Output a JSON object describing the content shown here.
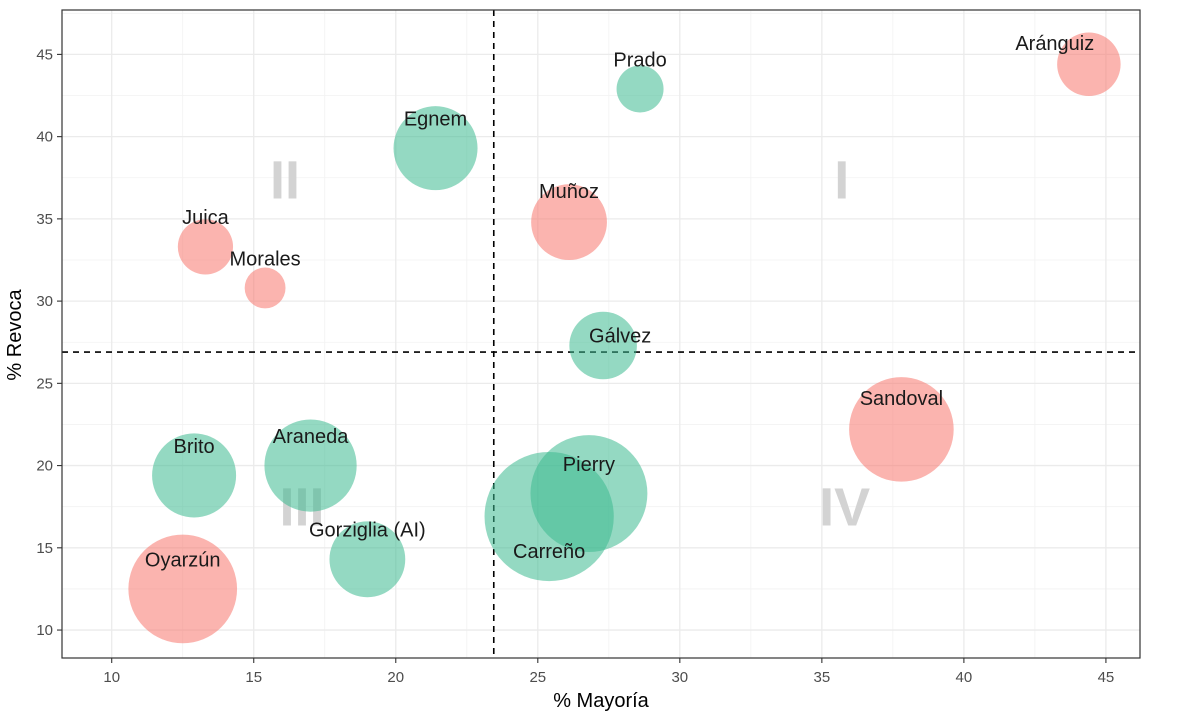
{
  "chart_data": {
    "type": "scatter",
    "title": "",
    "xlabel": "% Mayoría",
    "ylabel": "% Revoca",
    "xlim": [
      8.25,
      46.2
    ],
    "ylim": [
      8.3,
      47.7
    ],
    "xticks": [
      10,
      15,
      20,
      25,
      30,
      35,
      40,
      45
    ],
    "yticks": [
      10,
      15,
      20,
      25,
      30,
      35,
      40,
      45
    ],
    "grid": true,
    "colors": {
      "red": "#F8766D",
      "green": "#3CB990"
    },
    "reference_lines": {
      "x": 23.45,
      "y": 26.9
    },
    "quadrant_labels": [
      {
        "text": "I",
        "x": 35.7,
        "y": 37.4
      },
      {
        "text": "II",
        "x": 16.1,
        "y": 37.4
      },
      {
        "text": "III",
        "x": 16.7,
        "y": 17.5
      },
      {
        "text": "IV",
        "x": 35.8,
        "y": 17.5
      }
    ],
    "points": [
      {
        "name": "Aránguiz",
        "x": 44.4,
        "y": 44.4,
        "size": 2.6,
        "group": "red",
        "label_dx": -1.2,
        "label_dy": 1.3
      },
      {
        "name": "Prado",
        "x": 28.6,
        "y": 42.9,
        "size": 1.8,
        "group": "green",
        "label_dx": 0,
        "label_dy": 1.8
      },
      {
        "name": "Egnem",
        "x": 21.4,
        "y": 39.3,
        "size": 3.6,
        "group": "green",
        "label_dx": 0,
        "label_dy": 1.8
      },
      {
        "name": "Muñoz",
        "x": 26.1,
        "y": 34.8,
        "size": 3.2,
        "group": "red",
        "label_dx": 0,
        "label_dy": 1.9
      },
      {
        "name": "Juica",
        "x": 13.3,
        "y": 33.3,
        "size": 2.2,
        "group": "red",
        "label_dx": 0,
        "label_dy": 1.8
      },
      {
        "name": "Morales",
        "x": 15.4,
        "y": 30.8,
        "size": 1.5,
        "group": "red",
        "label_dx": 0,
        "label_dy": 1.8
      },
      {
        "name": "Gálvez",
        "x": 27.3,
        "y": 27.3,
        "size": 2.8,
        "group": "green",
        "label_dx": 0.6,
        "label_dy": 0.6
      },
      {
        "name": "Sandoval",
        "x": 37.8,
        "y": 22.2,
        "size": 4.6,
        "group": "red",
        "label_dx": 0,
        "label_dy": 1.9
      },
      {
        "name": "Brito",
        "x": 12.9,
        "y": 19.4,
        "size": 3.6,
        "group": "green",
        "label_dx": 0,
        "label_dy": 1.8
      },
      {
        "name": "Araneda",
        "x": 17.0,
        "y": 20.0,
        "size": 4.0,
        "group": "green",
        "label_dx": 0,
        "label_dy": 1.8
      },
      {
        "name": "Pierry",
        "x": 26.8,
        "y": 18.3,
        "size": 5.2,
        "group": "green",
        "label_dx": 0,
        "label_dy": 1.8
      },
      {
        "name": "Carreño",
        "x": 25.4,
        "y": 16.9,
        "size": 5.8,
        "group": "green",
        "label_dx": 0,
        "label_dy": -2.1
      },
      {
        "name": "Gorziglia (AI)",
        "x": 19.0,
        "y": 14.3,
        "size": 3.2,
        "group": "green",
        "label_dx": 0,
        "label_dy": 1.8
      },
      {
        "name": "Oyarzún",
        "x": 12.5,
        "y": 12.5,
        "size": 4.8,
        "group": "red",
        "label_dx": 0,
        "label_dy": 1.8
      }
    ]
  }
}
